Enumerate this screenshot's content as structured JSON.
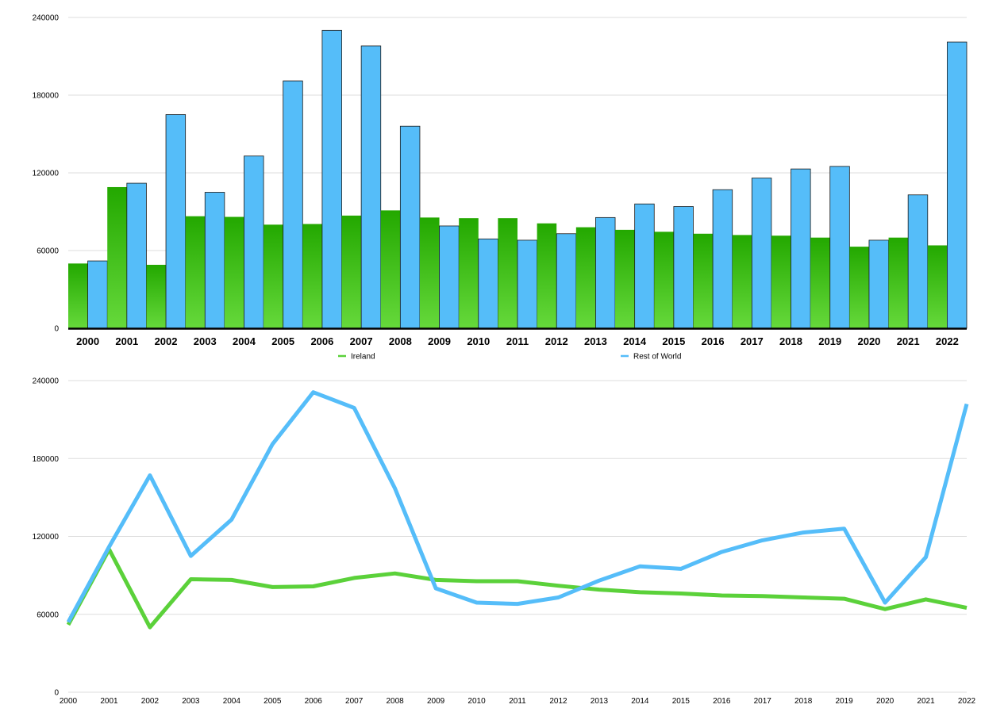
{
  "chart_data": [
    {
      "type": "bar",
      "categories": [
        "2000",
        "2001",
        "2002",
        "2003",
        "2004",
        "2005",
        "2006",
        "2007",
        "2008",
        "2009",
        "2010",
        "2011",
        "2012",
        "2013",
        "2014",
        "2015",
        "2016",
        "2017",
        "2018",
        "2019",
        "2020",
        "2021",
        "2022"
      ],
      "series": [
        {
          "name": "Ireland",
          "color": "#2db300",
          "values": [
            50000,
            109000,
            49000,
            86500,
            86000,
            80000,
            80500,
            87000,
            91000,
            85500,
            85000,
            85000,
            81000,
            78000,
            76000,
            74500,
            73000,
            72000,
            71500,
            70000,
            63000,
            70000,
            64000
          ]
        },
        {
          "name": "Rest of World",
          "color": "#55bdf9",
          "values": [
            52000,
            112000,
            165000,
            105000,
            133000,
            191000,
            230000,
            218000,
            156000,
            79000,
            69000,
            68000,
            73000,
            85500,
            96000,
            94000,
            107000,
            116000,
            123000,
            125000,
            68000,
            103000,
            221000
          ]
        }
      ],
      "ylim": [
        0,
        240000
      ],
      "yticks": [
        "0",
        "60000",
        "120000",
        "180000",
        "240000"
      ],
      "grid": true,
      "legend": "bottom-center"
    },
    {
      "type": "line",
      "x": [
        "2000",
        "2001",
        "2002",
        "2003",
        "2004",
        "2005",
        "2006",
        "2007",
        "2008",
        "2009",
        "2010",
        "2011",
        "2012",
        "2013",
        "2014",
        "2015",
        "2016",
        "2017",
        "2018",
        "2019",
        "2020",
        "2021",
        "2022"
      ],
      "series": [
        {
          "name": "Ireland",
          "color": "#5bd13a",
          "values": [
            52000,
            110000,
            50000,
            87000,
            86500,
            81000,
            81500,
            88000,
            91500,
            86500,
            85500,
            85500,
            82000,
            79000,
            77000,
            76000,
            74500,
            74000,
            73000,
            72000,
            64000,
            71500,
            65000
          ]
        },
        {
          "name": "Rest of World",
          "color": "#55bdf9",
          "values": [
            54000,
            112000,
            167000,
            105000,
            133000,
            191000,
            231000,
            219000,
            157000,
            80000,
            69000,
            68000,
            73000,
            86000,
            97000,
            95000,
            108000,
            117000,
            123000,
            126000,
            69000,
            104000,
            222000
          ]
        }
      ],
      "ylim": [
        0,
        240000
      ],
      "yticks": [
        "0",
        "60000",
        "120000",
        "180000",
        "240000"
      ],
      "grid": true
    }
  ]
}
